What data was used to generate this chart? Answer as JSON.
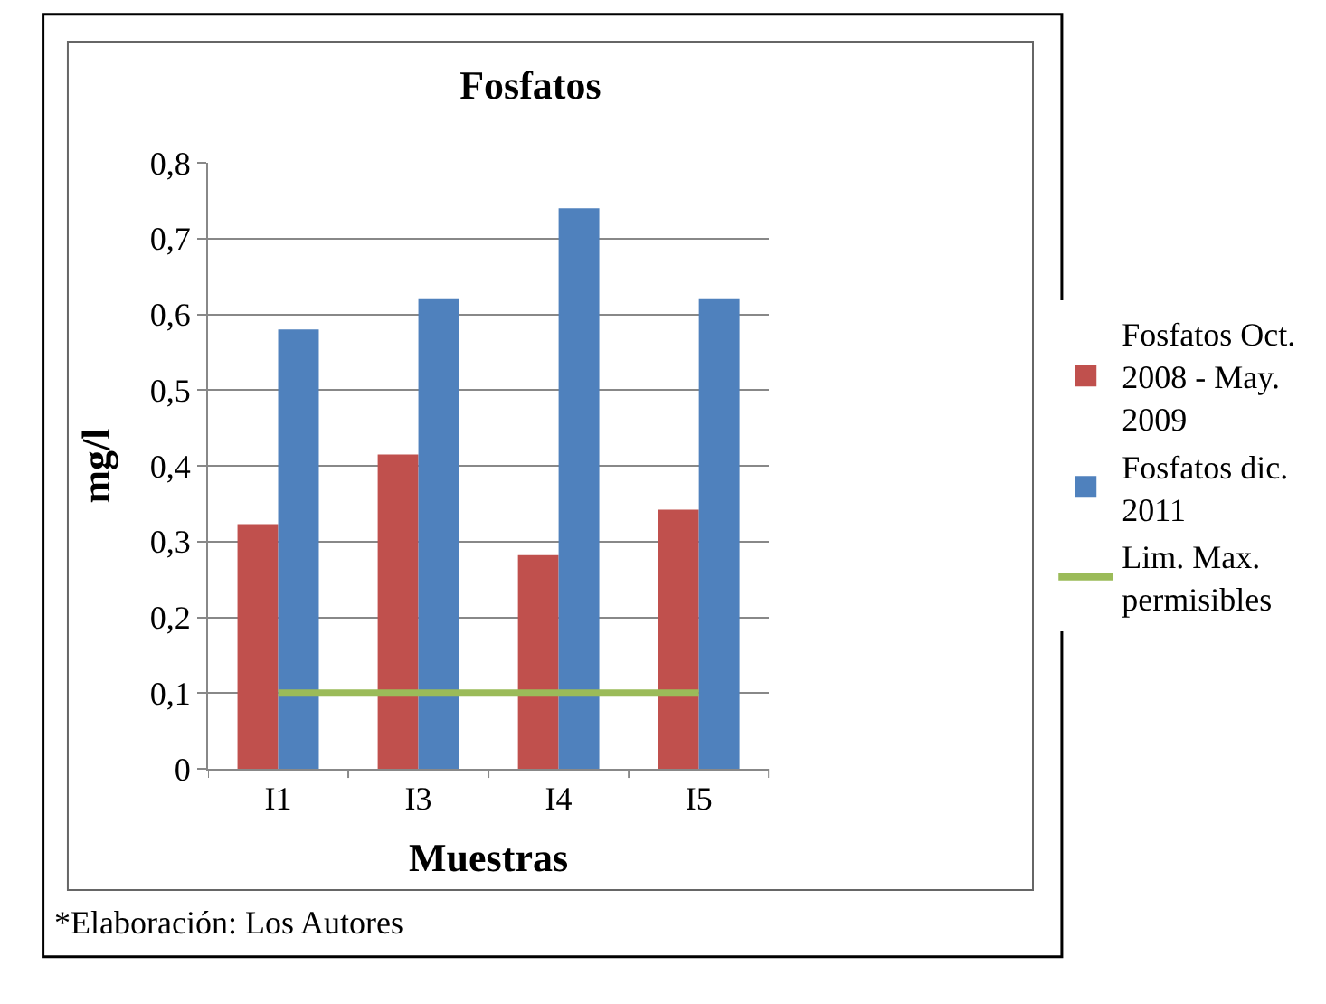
{
  "chart_data": {
    "type": "bar",
    "title": "Fosfatos",
    "xlabel": "Muestras",
    "ylabel": "mg/l",
    "categories": [
      "I1",
      "I3",
      "I4",
      "I5"
    ],
    "series": [
      {
        "name": "Fosfatos Oct. 2008 - May. 2009",
        "color": "#c0504d",
        "values": [
          0.323,
          0.415,
          0.282,
          0.342
        ]
      },
      {
        "name": "Fosfatos dic. 2011",
        "color": "#4f81bd",
        "values": [
          0.58,
          0.62,
          0.74,
          0.62
        ]
      },
      {
        "name": "Lim. Max. permisibles",
        "color": "#9bbb59",
        "type": "line",
        "values": [
          0.1,
          0.1,
          0.1,
          0.1
        ]
      }
    ],
    "ylim": [
      0,
      0.8
    ],
    "yticks": [
      {
        "value": 0,
        "label": "0"
      },
      {
        "value": 0.1,
        "label": "0,1"
      },
      {
        "value": 0.2,
        "label": "0,2"
      },
      {
        "value": 0.3,
        "label": "0,3"
      },
      {
        "value": 0.4,
        "label": "0,4"
      },
      {
        "value": 0.5,
        "label": "0,5"
      },
      {
        "value": 0.6,
        "label": "0,6"
      },
      {
        "value": 0.7,
        "label": "0,7"
      },
      {
        "value": 0.8,
        "label": "0,8"
      }
    ],
    "grid": "y",
    "legend": "right",
    "marker": "none",
    "annotations": [
      "*Elaboración: Los Autores"
    ]
  }
}
